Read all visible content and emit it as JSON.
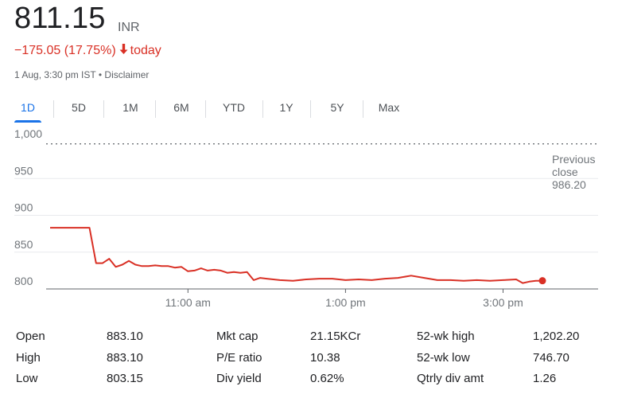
{
  "header": {
    "price": "811.15",
    "currency": "INR",
    "change": "−175.05 (17.75%)",
    "change_period": "today",
    "timestamp": "1 Aug, 3:30 pm IST",
    "separator": "•",
    "disclaimer": "Disclaimer",
    "down_color": "#d93025"
  },
  "tabs": [
    {
      "label": "1D",
      "active": true
    },
    {
      "label": "5D",
      "active": false
    },
    {
      "label": "1M",
      "active": false
    },
    {
      "label": "6M",
      "active": false
    },
    {
      "label": "YTD",
      "active": false
    },
    {
      "label": "1Y",
      "active": false
    },
    {
      "label": "5Y",
      "active": false
    },
    {
      "label": "Max",
      "active": false
    }
  ],
  "chart_data": {
    "type": "line",
    "series_color": "#d93025",
    "y_ticks": [
      "1,000",
      "950",
      "900",
      "850",
      "800"
    ],
    "x_ticks": [
      "11:00 am",
      "1:00 pm",
      "3:00 pm"
    ],
    "ylim": [
      800,
      1000
    ],
    "previous_close": {
      "label_line1": "Previous",
      "label_line2": "close",
      "value": "986.20"
    },
    "x": [
      "09:15",
      "09:30",
      "09:45",
      "09:50",
      "09:55",
      "10:00",
      "10:05",
      "10:10",
      "10:15",
      "10:20",
      "10:25",
      "10:30",
      "10:35",
      "10:40",
      "10:45",
      "10:50",
      "10:55",
      "11:00",
      "11:05",
      "11:10",
      "11:15",
      "11:20",
      "11:25",
      "11:30",
      "11:35",
      "11:40",
      "11:45",
      "11:50",
      "11:55",
      "12:00",
      "12:10",
      "12:20",
      "12:30",
      "12:40",
      "12:50",
      "13:00",
      "13:10",
      "13:20",
      "13:30",
      "13:40",
      "13:50",
      "14:00",
      "14:10",
      "14:20",
      "14:30",
      "14:40",
      "14:50",
      "15:00",
      "15:10",
      "15:15",
      "15:20",
      "15:25",
      "15:30"
    ],
    "values": [
      883.1,
      883.1,
      883.1,
      835,
      835,
      841,
      830,
      833,
      838,
      833,
      831,
      831,
      832,
      831,
      831,
      829,
      830,
      824,
      825,
      828,
      825,
      826,
      825,
      822,
      823,
      822,
      823,
      812,
      815,
      814,
      812,
      811,
      813,
      814,
      814,
      812,
      813,
      812,
      814,
      815,
      818,
      815,
      812,
      812,
      811,
      812,
      811,
      812,
      813,
      808,
      810,
      811,
      811.15
    ]
  },
  "stats": [
    {
      "label": "Open",
      "value": "883.10"
    },
    {
      "label": "High",
      "value": "883.10"
    },
    {
      "label": "Low",
      "value": "803.15"
    },
    {
      "label": "Mkt cap",
      "value": "21.15KCr"
    },
    {
      "label": "P/E ratio",
      "value": "10.38"
    },
    {
      "label": "Div yield",
      "value": "0.62%"
    },
    {
      "label": "52-wk high",
      "value": "1,202.20"
    },
    {
      "label": "52-wk low",
      "value": "746.70"
    },
    {
      "label": "Qtrly div amt",
      "value": "1.26"
    }
  ]
}
